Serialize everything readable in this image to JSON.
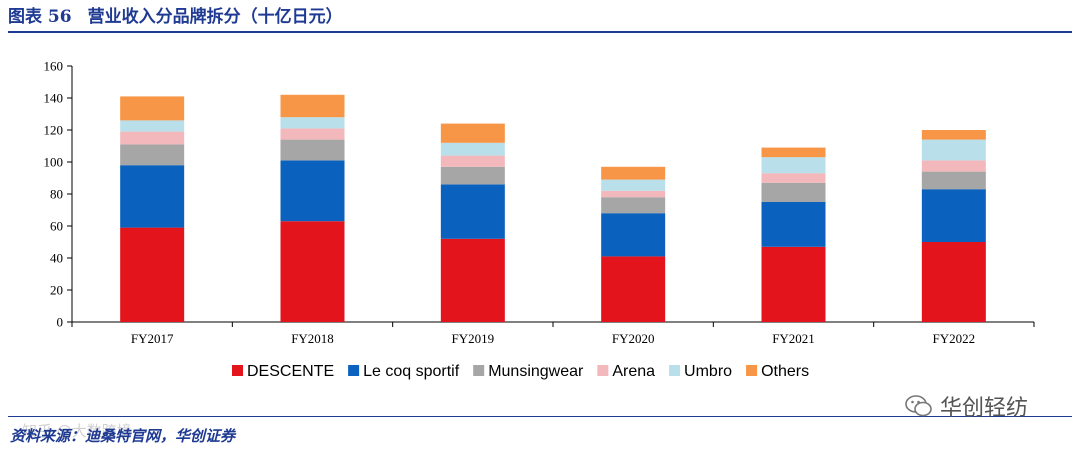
{
  "header": {
    "figure_number": "图表 56",
    "title": "营业收入分品牌拆分（十亿日元）"
  },
  "footer": {
    "source": "资料来源：迪桑特官网，华创证券",
    "watermark": "知乎 @大数跨境",
    "brand": "华创轻纺"
  },
  "colors": {
    "DESCENTE": "#e3141c",
    "Le coq sportif": "#0a62be",
    "Munsingwear": "#a6a6a6",
    "Arena": "#f2b8bc",
    "Umbro": "#b8dfea",
    "Others": "#f79646",
    "title": "#1f3a93"
  },
  "chart_data": {
    "type": "bar",
    "stacked": true,
    "title": "营业收入分品牌拆分（十亿日元）",
    "xlabel": "",
    "ylabel": "",
    "ylim": [
      0,
      160
    ],
    "yticks": [
      0,
      20,
      40,
      60,
      80,
      100,
      120,
      140,
      160
    ],
    "ytick_labels": [
      "0",
      "20",
      "40",
      "60",
      "80",
      "100",
      "120",
      "140",
      "160"
    ],
    "categories": [
      "FY2017",
      "FY2018",
      "FY2019",
      "FY2020",
      "FY2021",
      "FY2022"
    ],
    "legend_position": "bottom",
    "grid": false,
    "series": [
      {
        "name": "DESCENTE",
        "values": [
          59,
          63,
          52,
          41,
          47,
          50
        ]
      },
      {
        "name": "Le coq sportif",
        "values": [
          39,
          38,
          34,
          27,
          28,
          33
        ]
      },
      {
        "name": "Munsingwear",
        "values": [
          13,
          13,
          11,
          10,
          12,
          11
        ]
      },
      {
        "name": "Arena",
        "values": [
          8,
          7,
          7,
          4,
          6,
          7
        ]
      },
      {
        "name": "Umbro",
        "values": [
          7,
          7,
          8,
          7,
          10,
          13
        ]
      },
      {
        "name": "Others",
        "values": [
          15,
          14,
          12,
          8,
          6,
          6
        ]
      }
    ]
  }
}
